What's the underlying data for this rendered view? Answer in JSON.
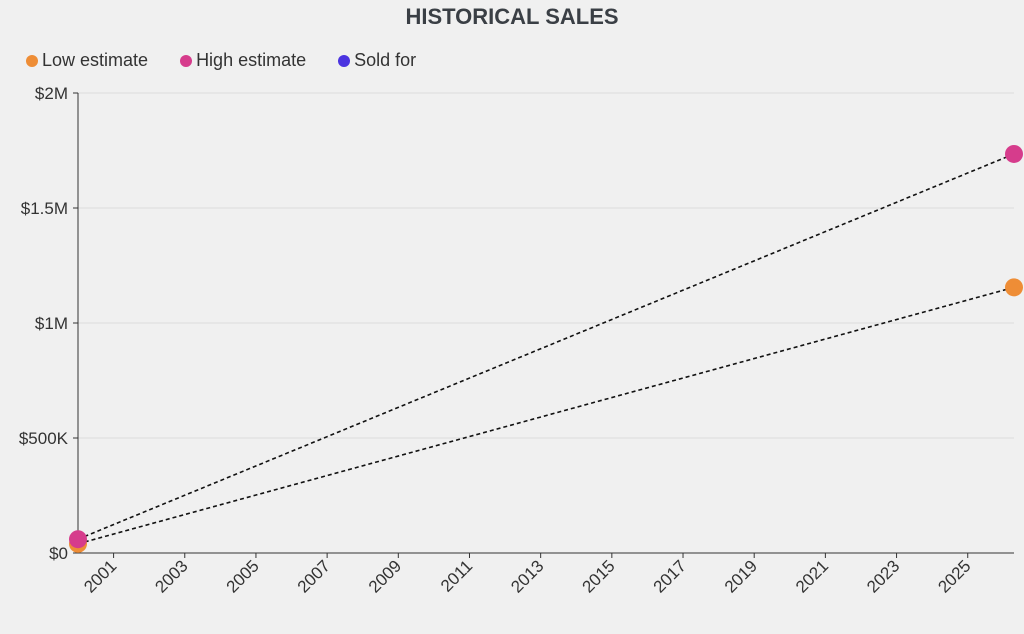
{
  "chart_data": {
    "type": "scatter",
    "title": "HISTORICAL SALES",
    "xlabel": "",
    "ylabel": "",
    "xlim": [
      2000.0,
      2026.3
    ],
    "ylim": [
      0,
      2000000
    ],
    "x_ticks": [
      2001,
      2003,
      2005,
      2007,
      2009,
      2011,
      2013,
      2015,
      2017,
      2019,
      2021,
      2023,
      2025
    ],
    "x_tick_labels": [
      "2001",
      "2003",
      "2005",
      "2007",
      "2009",
      "2011",
      "2013",
      "2015",
      "2017",
      "2019",
      "2021",
      "2023",
      "2025"
    ],
    "y_ticks": [
      0,
      500000,
      1000000,
      1500000,
      2000000
    ],
    "y_tick_labels": [
      "$0",
      "$500K",
      "$1M",
      "$1.5M",
      "$2M"
    ],
    "grid": true,
    "series": [
      {
        "name": "Low estimate",
        "color": "#ee8d36",
        "points": [
          {
            "x": 2000.0,
            "y": 40000
          },
          {
            "x": 2026.3,
            "y": 1155000
          }
        ],
        "trendline": "dashed"
      },
      {
        "name": "High estimate",
        "color": "#d63c8c",
        "points": [
          {
            "x": 2000.0,
            "y": 60000
          },
          {
            "x": 2026.3,
            "y": 1735000
          }
        ],
        "trendline": "dashed"
      },
      {
        "name": "Sold for",
        "color": "#4b34e0",
        "points": []
      }
    ]
  }
}
